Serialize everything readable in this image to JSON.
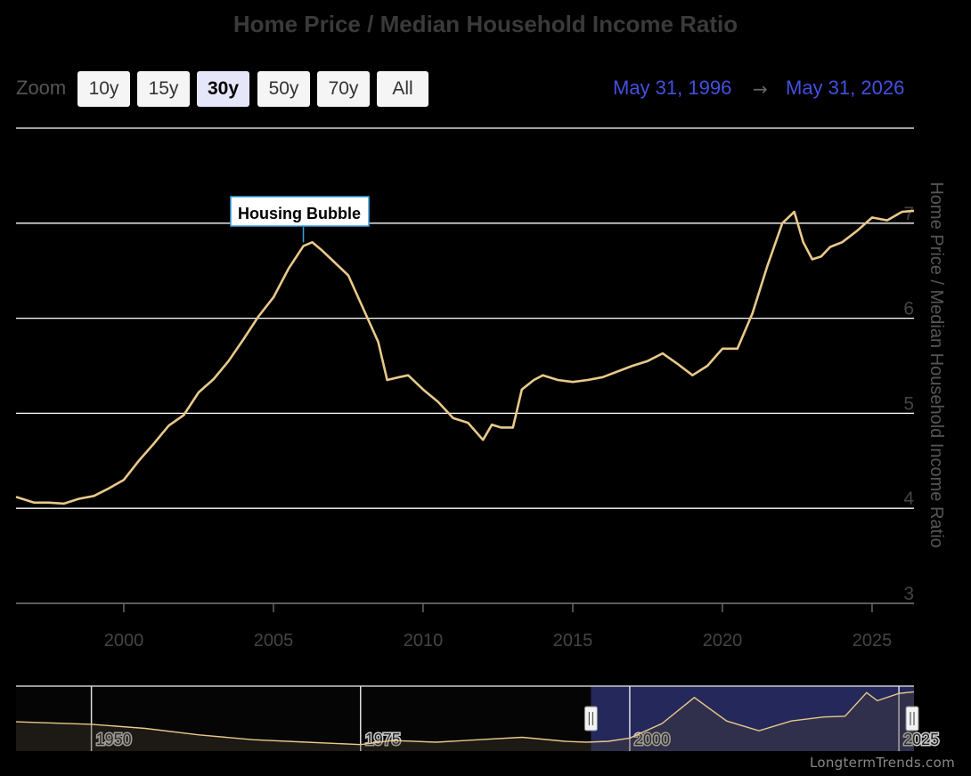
{
  "title": "Home Price / Median Household Income Ratio",
  "zoom": {
    "label": "Zoom",
    "buttons": [
      {
        "label": "10y",
        "active": false
      },
      {
        "label": "15y",
        "active": false
      },
      {
        "label": "30y",
        "active": true
      },
      {
        "label": "50y",
        "active": false
      },
      {
        "label": "70y",
        "active": false
      },
      {
        "label": "All",
        "active": false
      }
    ]
  },
  "range": {
    "from": "May 31, 1996",
    "arrow": "→",
    "to": "May 31, 2026"
  },
  "credit": "LongtermTrends.com",
  "colors": {
    "line": "#e8c98a",
    "grid": "#ffffff",
    "navigator_mask": "#2a2f6b",
    "range_text": "#4450e0"
  },
  "chart_data": {
    "type": "line",
    "title": "Home Price / Median Household Income Ratio",
    "ylabel": "Home Price / Median Household Income Ratio",
    "xlabel": "",
    "xlim": [
      1996.4,
      2026.4
    ],
    "ylim": [
      3,
      8
    ],
    "yticks": [
      3,
      4,
      5,
      6,
      7
    ],
    "xticks": [
      2000,
      2005,
      2010,
      2015,
      2020,
      2025
    ],
    "grid": true,
    "annotation": {
      "text": "Housing Bubble",
      "x": 2006.0,
      "y": 6.78
    },
    "series": [
      {
        "x": [
          1996.4,
          1997.0,
          1997.5,
          1998.0,
          1998.5,
          1999.0,
          1999.5,
          2000.0,
          2000.5,
          2001.0,
          2001.5,
          2002.0,
          2002.5,
          2003.0,
          2003.5,
          2004.0,
          2004.5,
          2005.0,
          2005.5,
          2006.0,
          2006.3,
          2006.6,
          2007.0,
          2007.5,
          2008.0,
          2008.5,
          2008.8,
          2009.2,
          2009.5,
          2010.0,
          2010.5,
          2011.0,
          2011.5,
          2012.0,
          2012.3,
          2012.6,
          2013.0,
          2013.3,
          2013.7,
          2014.0,
          2014.5,
          2015.0,
          2015.5,
          2016.0,
          2016.5,
          2017.0,
          2017.5,
          2018.0,
          2018.5,
          2019.0,
          2019.5,
          2020.0,
          2020.5,
          2021.0,
          2021.5,
          2022.0,
          2022.4,
          2022.7,
          2023.0,
          2023.3,
          2023.6,
          2024.0,
          2024.5,
          2025.0,
          2025.5,
          2026.0,
          2026.4
        ],
        "values": [
          4.12,
          4.06,
          4.06,
          4.05,
          4.1,
          4.13,
          4.21,
          4.3,
          4.5,
          4.68,
          4.87,
          4.98,
          5.22,
          5.36,
          5.55,
          5.78,
          6.02,
          6.22,
          6.52,
          6.76,
          6.8,
          6.72,
          6.6,
          6.45,
          6.1,
          5.75,
          5.35,
          5.38,
          5.4,
          5.25,
          5.12,
          4.95,
          4.9,
          4.72,
          4.88,
          4.85,
          4.85,
          5.25,
          5.35,
          5.4,
          5.35,
          5.33,
          5.35,
          5.38,
          5.44,
          5.5,
          5.55,
          5.63,
          5.52,
          5.4,
          5.5,
          5.68,
          5.68,
          6.05,
          6.55,
          7.0,
          7.12,
          6.8,
          6.62,
          6.65,
          6.75,
          6.8,
          6.92,
          7.06,
          7.03,
          7.12,
          7.13
        ]
      }
    ],
    "navigator": {
      "xlim": [
        1943,
        2026.4
      ],
      "xticks": [
        1950,
        1975,
        2000,
        2025
      ],
      "selected": [
        1996.4,
        2026.4
      ],
      "x": [
        1943,
        1950,
        1955,
        1960,
        1965,
        1970,
        1975,
        1978,
        1982,
        1986,
        1990,
        1994,
        1996,
        1998,
        2000,
        2003,
        2006,
        2009,
        2012,
        2015,
        2018,
        2020,
        2022,
        2023,
        2025,
        2026.4
      ],
      "values": [
        5.3,
        5.15,
        4.9,
        4.5,
        4.2,
        4.05,
        3.9,
        4.15,
        4.05,
        4.2,
        4.35,
        4.1,
        4.05,
        4.1,
        4.3,
        5.2,
        6.8,
        5.35,
        4.75,
        5.35,
        5.6,
        5.65,
        7.1,
        6.6,
        7.05,
        7.15
      ]
    }
  }
}
